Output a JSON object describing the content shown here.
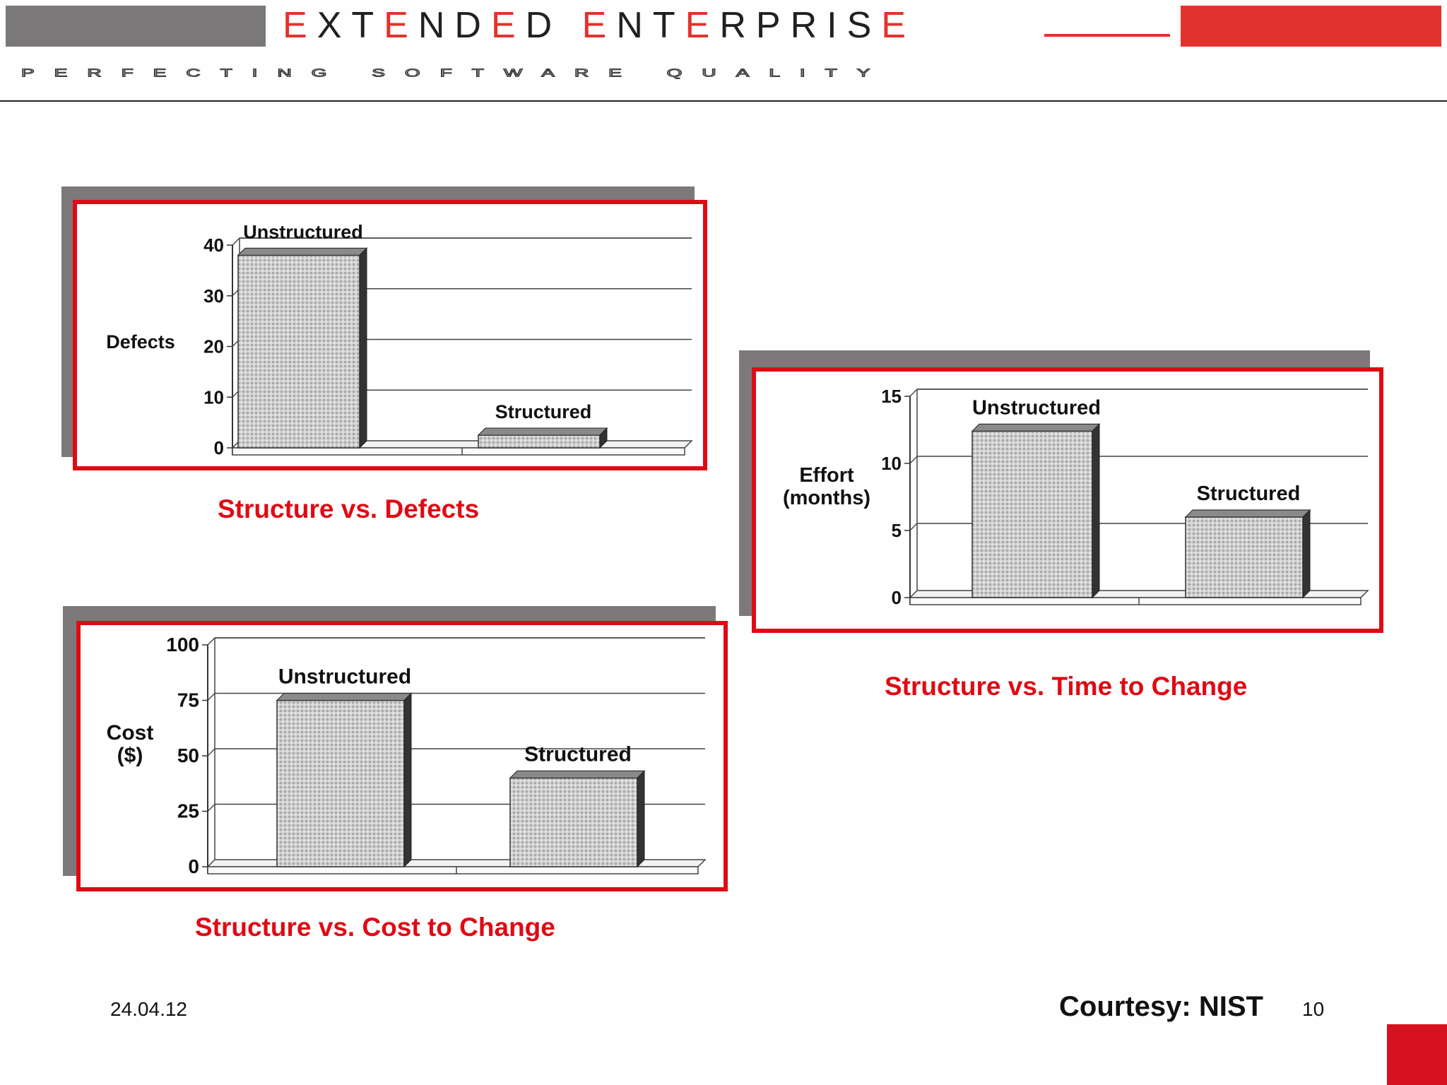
{
  "header": {
    "logo_words": [
      {
        "first": "E",
        "rest": "XT",
        "mid": "E",
        "tail": "ND",
        "mid2": "E",
        "end": "D"
      },
      {
        "first": "E",
        "rest": "NT",
        "mid": "E",
        "tail": "RPRIS",
        "mid2": "E",
        "end": ""
      }
    ],
    "tagline": "PERFECTING SOFTWARE QUALITY",
    "colors": {
      "brand_red": "#e2322d",
      "brand_gray": "#7b7879",
      "panel_red": "#e00a14"
    }
  },
  "chart_data": [
    {
      "type": "bar",
      "categories": [
        "Unstructured",
        "Structured"
      ],
      "values": [
        38,
        2.5
      ],
      "ylabel": "Defects",
      "yticks": [
        0,
        10,
        20,
        30,
        40
      ],
      "ylim": [
        0,
        40
      ],
      "caption": "Structure vs. Defects"
    },
    {
      "type": "bar",
      "categories": [
        "Unstructured",
        "Structured"
      ],
      "values": [
        12.4,
        6
      ],
      "ylabel": [
        "Effort",
        "(months)"
      ],
      "yticks": [
        0,
        5,
        10,
        15
      ],
      "ylim": [
        0,
        15
      ],
      "caption": "Structure vs. Time to Change"
    },
    {
      "type": "bar",
      "categories": [
        "Unstructured",
        "Structured"
      ],
      "values": [
        75,
        40
      ],
      "ylabel": [
        "Cost",
        "($)"
      ],
      "yticks": [
        0,
        25,
        50,
        75,
        100
      ],
      "ylim": [
        0,
        100
      ],
      "caption": "Structure vs. Cost to Change"
    }
  ],
  "footer": {
    "date": "24.04.12",
    "courtesy": "Courtesy: NIST",
    "page": "10"
  }
}
